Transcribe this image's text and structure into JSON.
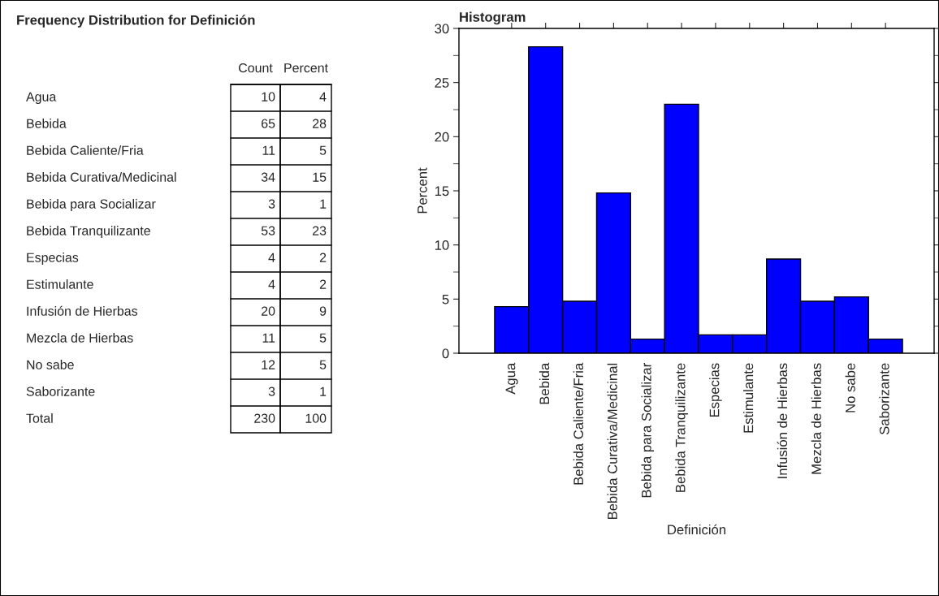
{
  "chart_data": [
    {
      "type": "other",
      "title": "Frequency Distribution for Definición",
      "categories": [
        "Agua",
        "Bebida",
        "Bebida Caliente/Fria",
        "Bebida Curativa/Medicinal",
        "Bebida para Socializar",
        "Bebida Tranquilizante",
        "Especias",
        "Estimulante",
        "Infusión de Hierbas",
        "Mezcla de Hierbas",
        "No sabe",
        "Saborizante",
        "Total"
      ],
      "series": [
        {
          "name": "Count",
          "values": [
            10,
            65,
            11,
            34,
            3,
            53,
            4,
            4,
            20,
            11,
            12,
            3,
            230
          ]
        },
        {
          "name": "Percent",
          "values": [
            4,
            28,
            5,
            15,
            1,
            23,
            2,
            2,
            9,
            5,
            5,
            1,
            100
          ]
        }
      ],
      "data_labels": true
    },
    {
      "type": "bar",
      "title": "Histogram",
      "xlabel": "Definición",
      "ylabel": "Percent",
      "categories": [
        "Agua",
        "Bebida",
        "Bebida Caliente/Fria",
        "Bebida Curativa/Medicinal",
        "Bebida para Socializar",
        "Bebida Tranquilizante",
        "Especias",
        "Estimulante",
        "Infusión de Hierbas",
        "Mezcla de Hierbas",
        "No sabe",
        "Saborizante"
      ],
      "values": [
        4.3,
        28.3,
        4.8,
        14.8,
        1.3,
        23.0,
        1.7,
        1.7,
        8.7,
        4.8,
        5.2,
        1.3
      ],
      "color": "#0000ff",
      "ylim": [
        0,
        30
      ],
      "yticks": [
        0,
        5,
        10,
        15,
        20,
        25,
        30
      ],
      "grid": false,
      "legend": false
    }
  ]
}
